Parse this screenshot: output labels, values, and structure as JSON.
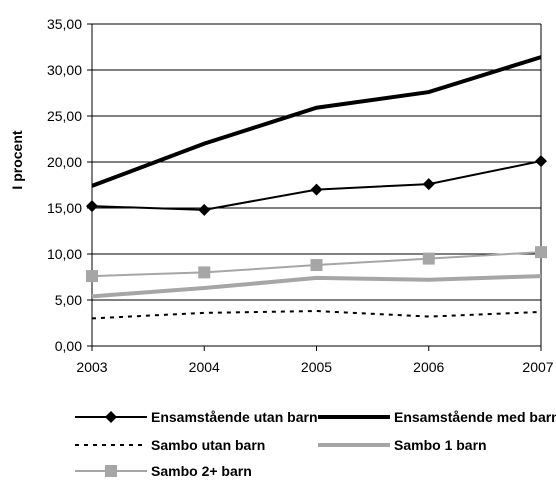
{
  "chart_data": {
    "type": "line",
    "ylabel": "I procent",
    "xlabel": "",
    "title": "",
    "x": [
      "2003",
      "2004",
      "2005",
      "2006",
      "2007"
    ],
    "y_ticks": [
      "0,00",
      "5,00",
      "10,00",
      "15,00",
      "20,00",
      "25,00",
      "30,00",
      "35,00"
    ],
    "ylim": [
      0,
      35
    ],
    "grid": "horizontal",
    "legend_position": "bottom",
    "series": [
      {
        "name": "Ensamstående utan barn",
        "values": [
          15.2,
          14.8,
          17.0,
          17.6,
          20.1
        ],
        "color": "#000000",
        "style": "solid",
        "marker": "diamond"
      },
      {
        "name": "Ensamstående med barn",
        "values": [
          17.4,
          22.0,
          25.9,
          27.6,
          31.4
        ],
        "color": "#000000",
        "style": "solid-thick",
        "marker": "none"
      },
      {
        "name": "Sambo utan barn",
        "values": [
          3.0,
          3.6,
          3.8,
          3.2,
          3.7
        ],
        "color": "#000000",
        "style": "dashed",
        "marker": "none"
      },
      {
        "name": "Sambo 1 barn",
        "values": [
          5.4,
          6.3,
          7.4,
          7.2,
          7.6
        ],
        "color": "#a6a6a6",
        "style": "solid-thick",
        "marker": "none"
      },
      {
        "name": "Sambo 2+ barn",
        "values": [
          7.6,
          8.0,
          8.8,
          9.5,
          10.2
        ],
        "color": "#a6a6a6",
        "style": "solid",
        "marker": "square"
      }
    ]
  }
}
